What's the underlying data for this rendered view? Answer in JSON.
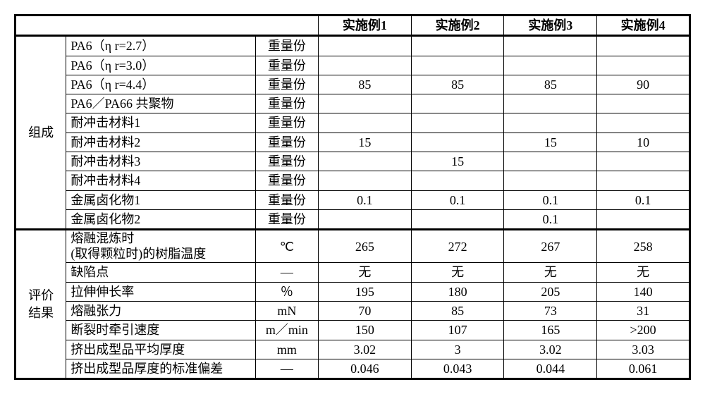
{
  "headers": {
    "blank1": "",
    "blank2": "",
    "blank3": "",
    "e1": "实施例1",
    "e2": "实施例2",
    "e3": "实施例3",
    "e4": "实施例4"
  },
  "group1_label": "组成",
  "group2_label": "评价结果",
  "comp": [
    {
      "param": "PA6（η r=2.7）",
      "unit": "重量份",
      "v": [
        "",
        "",
        "",
        ""
      ]
    },
    {
      "param": "PA6（η r=3.0）",
      "unit": "重量份",
      "v": [
        "",
        "",
        "",
        ""
      ]
    },
    {
      "param": "PA6（η r=4.4）",
      "unit": "重量份",
      "v": [
        "85",
        "85",
        "85",
        "90"
      ]
    },
    {
      "param": "PA6／PA66 共聚物",
      "unit": "重量份",
      "v": [
        "",
        "",
        "",
        ""
      ]
    },
    {
      "param": "耐冲击材料1",
      "unit": "重量份",
      "v": [
        "",
        "",
        "",
        ""
      ]
    },
    {
      "param": "耐冲击材料2",
      "unit": "重量份",
      "v": [
        "15",
        "",
        "15",
        "10"
      ]
    },
    {
      "param": "耐冲击材料3",
      "unit": "重量份",
      "v": [
        "",
        "15",
        "",
        ""
      ]
    },
    {
      "param": "耐冲击材料4",
      "unit": "重量份",
      "v": [
        "",
        "",
        "",
        ""
      ]
    },
    {
      "param": "金属卤化物1",
      "unit": "重量份",
      "v": [
        "0.1",
        "0.1",
        "0.1",
        "0.1"
      ]
    },
    {
      "param": "金属卤化物2",
      "unit": "重量份",
      "v": [
        "",
        "",
        "0.1",
        ""
      ]
    }
  ],
  "eval": [
    {
      "param": "熔融混炼时\n(取得颗粒时)的树脂温度",
      "unit": "℃",
      "v": [
        "265",
        "272",
        "267",
        "258"
      ]
    },
    {
      "param": "缺陷点",
      "unit": "—",
      "v": [
        "无",
        "无",
        "无",
        "无"
      ]
    },
    {
      "param": "拉伸伸长率",
      "unit": "％",
      "v": [
        "195",
        "180",
        "205",
        "140"
      ]
    },
    {
      "param": "熔融张力",
      "unit": "mN",
      "v": [
        "70",
        "85",
        "73",
        "31"
      ]
    },
    {
      "param": "断裂时牵引速度",
      "unit": "m／min",
      "v": [
        "150",
        "107",
        "165",
        ">200"
      ]
    },
    {
      "param": "挤出成型品平均厚度",
      "unit": "mm",
      "v": [
        "3.02",
        "3",
        "3.02",
        "3.03"
      ]
    },
    {
      "param": "挤出成型品厚度的标准偏差",
      "unit": "—",
      "v": [
        "0.046",
        "0.043",
        "0.044",
        "0.061"
      ]
    }
  ]
}
